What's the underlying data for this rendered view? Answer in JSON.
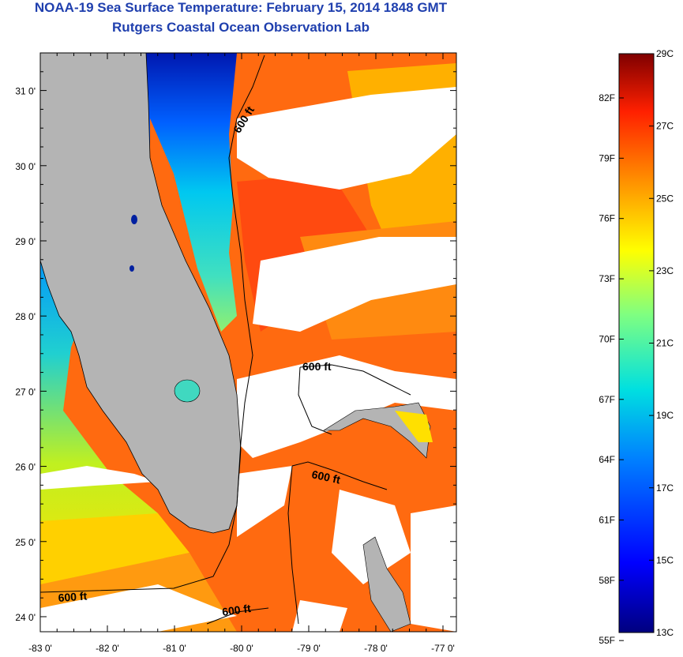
{
  "title": "NOAA-19 Sea Surface Temperature:  February 15, 2014 1848 GMT",
  "subtitle": "Rutgers Coastal Ocean Observation Lab",
  "map": {
    "lon_range": [
      -83.0,
      -76.8
    ],
    "lat_range": [
      23.8,
      31.5
    ],
    "lon_ticks": [
      "-83 0'",
      "-82 0'",
      "-81 0'",
      "-80 0'",
      "-79 0'",
      "-78 0'",
      "-77 0'"
    ],
    "lon_values": [
      -83,
      -82,
      -81,
      -80,
      -79,
      -78,
      -77
    ],
    "lat_ticks": [
      "31 0'",
      "30 0'",
      "29 0'",
      "28 0'",
      "27 0'",
      "26 0'",
      "25 0'",
      "24 0'"
    ],
    "lat_values": [
      31,
      30,
      29,
      28,
      27,
      26,
      25,
      24
    ],
    "contour_labels": [
      "600 ft",
      "600 ft",
      "600 ft",
      "600 ft",
      "600 ft"
    ],
    "colors": {
      "land": "#b4b4b4",
      "cloud": "#ffffff",
      "coast": "#000000"
    }
  },
  "colorbar": {
    "celsius_labels": [
      "29C",
      "27C",
      "25C",
      "23C",
      "21C",
      "19C",
      "17C",
      "15C",
      "13C"
    ],
    "celsius_values": [
      29,
      27,
      25,
      23,
      21,
      19,
      17,
      15,
      13
    ],
    "fahrenheit_labels": [
      "82F",
      "79F",
      "76F",
      "73F",
      "70F",
      "67F",
      "64F",
      "61F",
      "58F",
      "55F"
    ],
    "fahrenheit_values": [
      82,
      79,
      76,
      73,
      70,
      67,
      64,
      61,
      58,
      55
    ],
    "range_c": [
      13,
      29
    ]
  }
}
